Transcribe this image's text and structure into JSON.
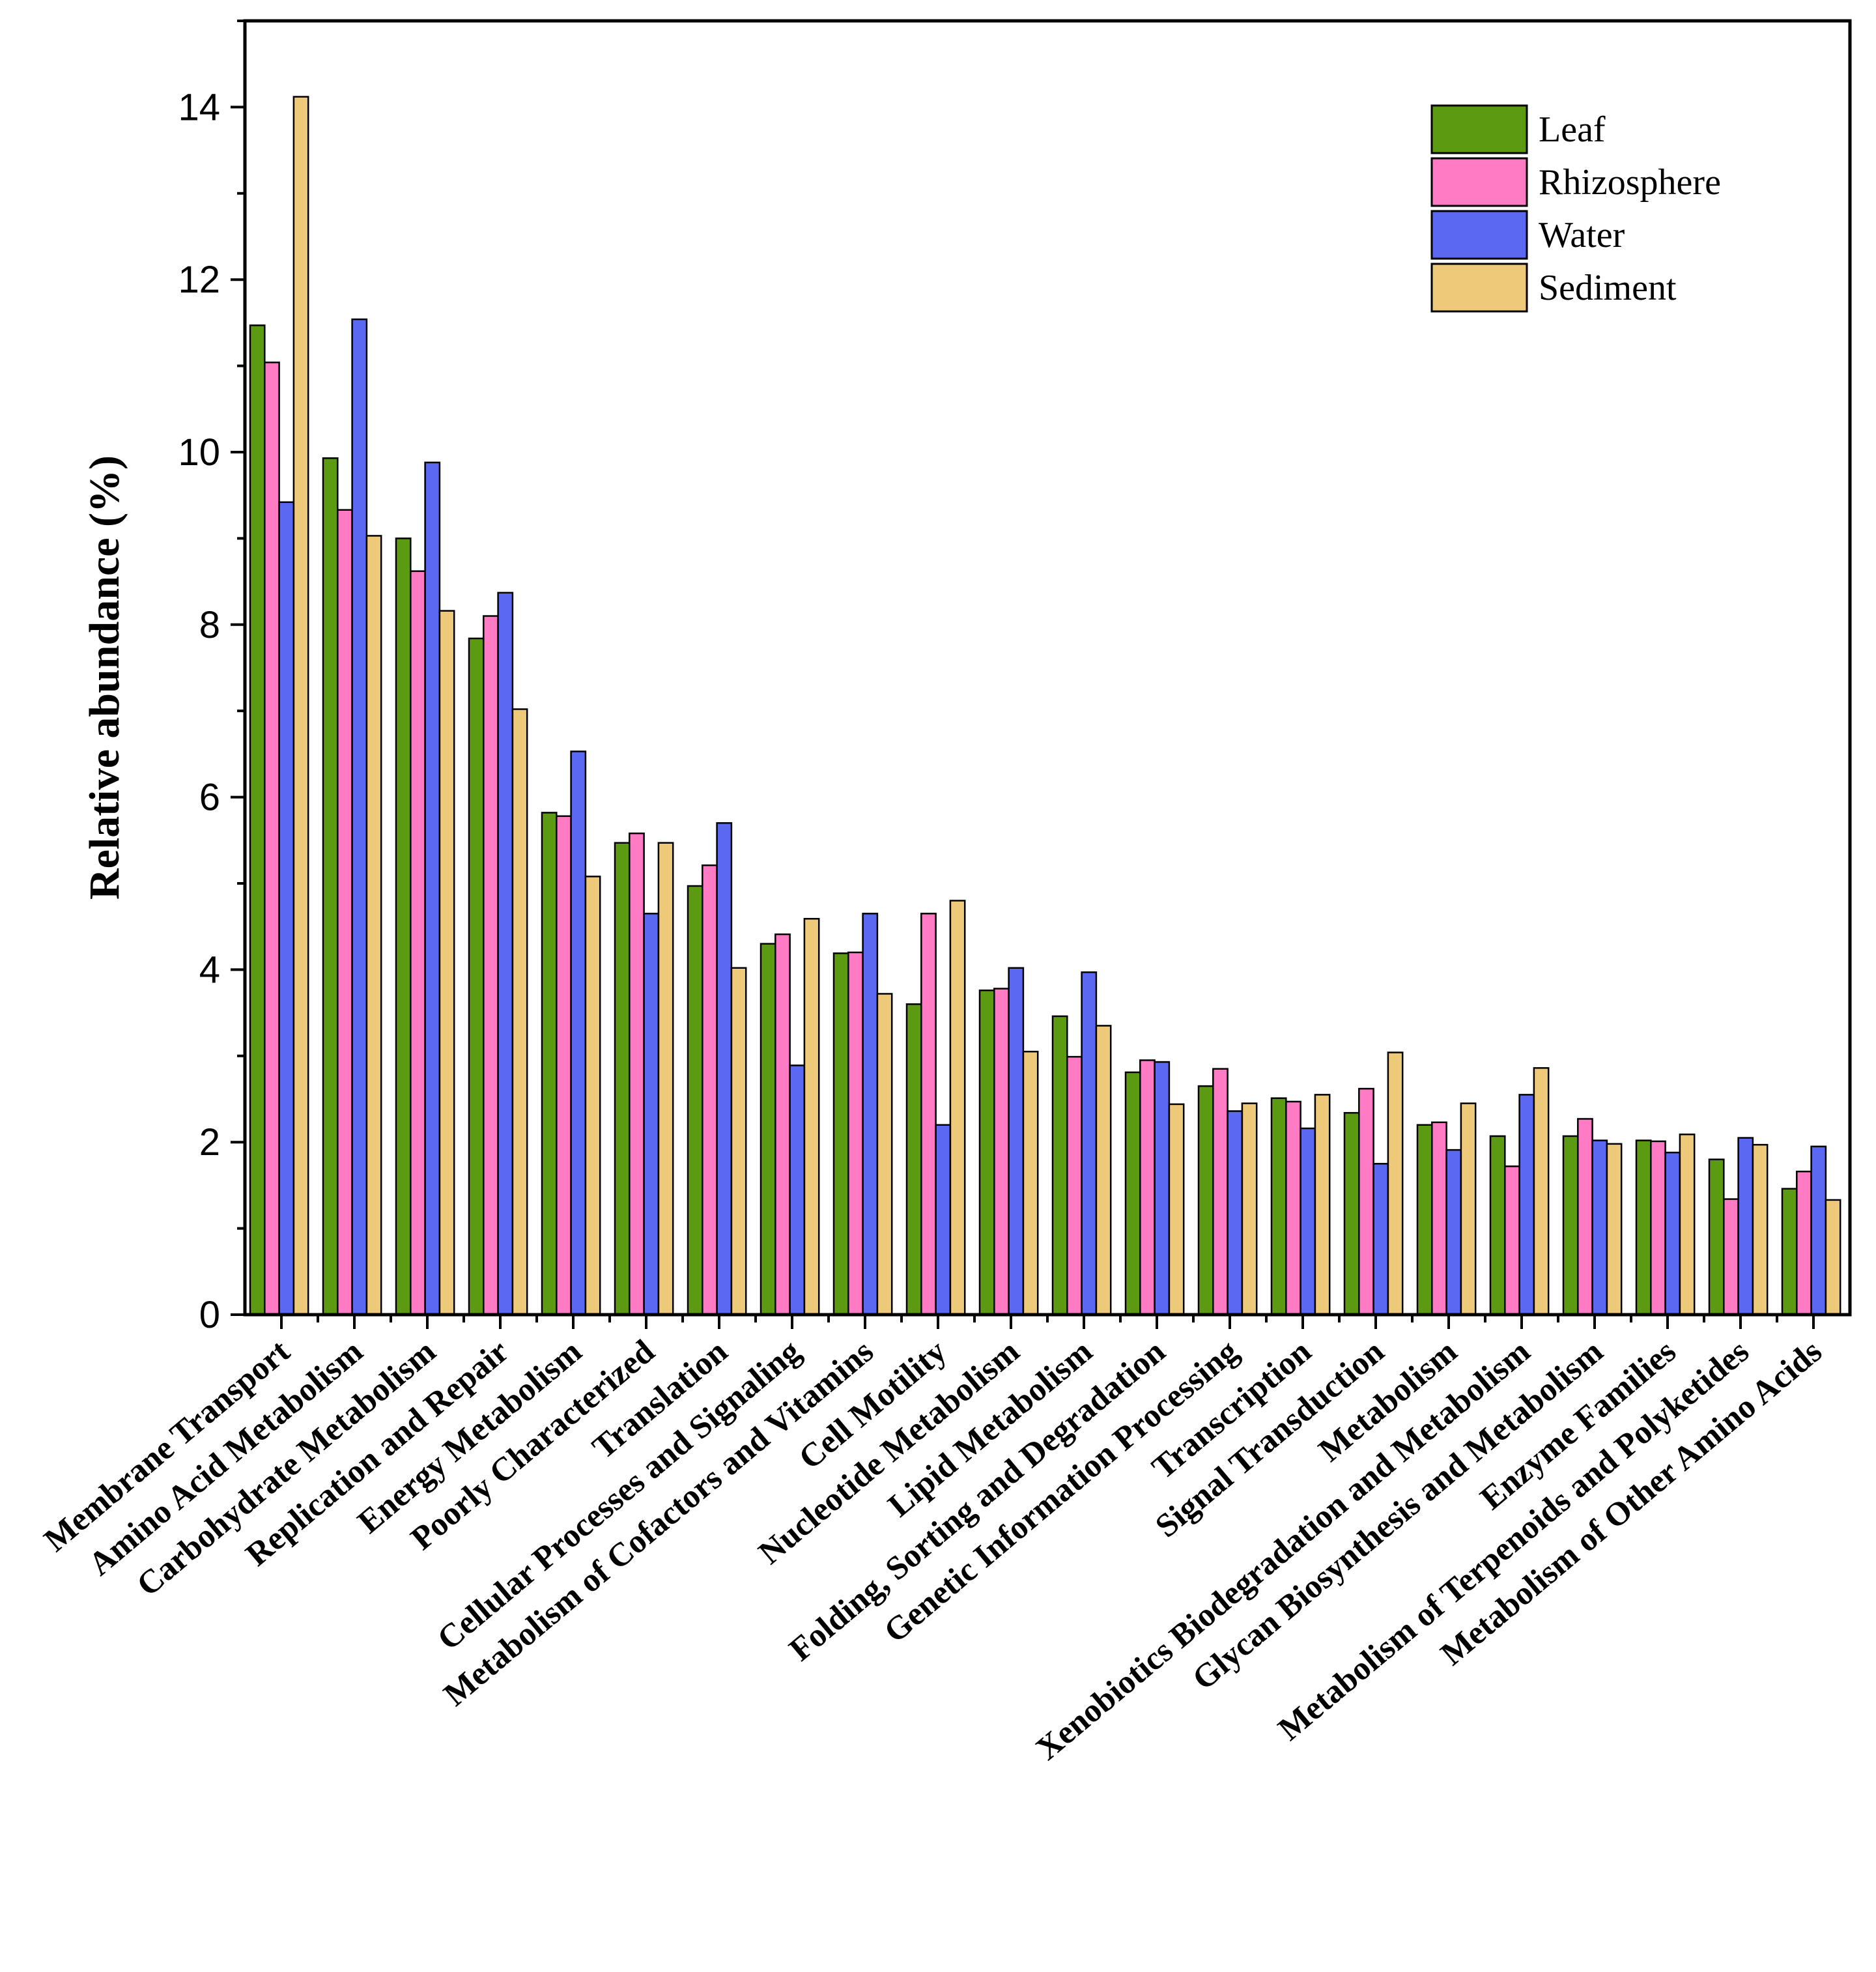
{
  "chart_data": {
    "type": "bar",
    "title": "",
    "xlabel": "",
    "ylabel": "Relative abundance (%)",
    "ylim": [
      0,
      15
    ],
    "yticks": [
      0,
      2,
      4,
      6,
      8,
      10,
      12,
      14
    ],
    "grid": false,
    "legend_position": "top-right",
    "categories": [
      "Membrane Transport",
      "Amino Acid Metabolism",
      "Carbohydrate Metabolism",
      "Replication and Repair",
      "Energy Metabolism",
      "Poorly Characterized",
      "Translation",
      "Cellular Processes and Signaling",
      "Metabolism of Cofactors and Vitamins",
      "Cell Motility",
      "Nucleotide Metabolism",
      "Lipid Metabolism",
      "Folding, Sorting and Degradation",
      "Genetic Information Processing",
      "Transcription",
      "Signal Transduction",
      "Metabolism",
      "Xenobiotics Biodegradation and Metabolism",
      "Glycan Biosynthesis and Metabolism",
      "Enzyme Families",
      "Metabolism of Terpenoids and Polyketides",
      "Metabolism of Other Amino Acids"
    ],
    "series": [
      {
        "name": "Leaf",
        "color": "#5c9a12",
        "values": [
          11.47,
          9.93,
          9.0,
          7.84,
          5.82,
          5.47,
          4.97,
          4.3,
          4.19,
          3.6,
          3.76,
          3.46,
          2.81,
          2.65,
          2.51,
          2.34,
          2.2,
          2.07,
          2.07,
          2.02,
          1.8,
          1.46
        ]
      },
      {
        "name": "Rhizosphere",
        "color": "#ff7bc3",
        "values": [
          11.04,
          9.33,
          8.62,
          8.1,
          5.78,
          5.58,
          5.21,
          4.41,
          4.2,
          4.65,
          3.78,
          2.99,
          2.95,
          2.85,
          2.47,
          2.62,
          2.23,
          1.72,
          2.27,
          2.01,
          1.34,
          1.66
        ]
      },
      {
        "name": "Water",
        "color": "#5a68f2",
        "values": [
          9.42,
          11.54,
          9.88,
          8.37,
          6.53,
          4.65,
          5.7,
          2.89,
          4.65,
          2.2,
          4.02,
          3.97,
          2.93,
          2.36,
          2.16,
          1.75,
          1.91,
          2.55,
          2.02,
          1.88,
          2.05,
          1.95
        ]
      },
      {
        "name": "Sediment",
        "color": "#efc97a",
        "values": [
          14.12,
          9.03,
          8.16,
          7.02,
          5.08,
          5.47,
          4.02,
          4.59,
          3.72,
          4.8,
          3.05,
          3.35,
          2.44,
          2.45,
          2.55,
          3.04,
          2.45,
          2.86,
          1.98,
          2.09,
          1.97,
          1.33
        ]
      }
    ]
  }
}
